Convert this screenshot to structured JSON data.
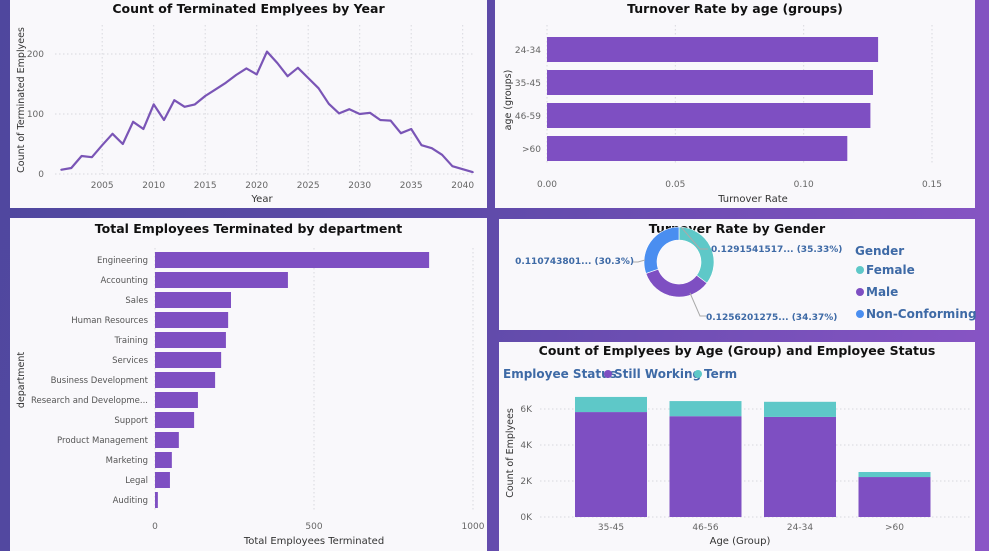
{
  "colors": {
    "purple": "#7e4fc2",
    "teal": "#5ec8c8",
    "blue": "#4a8ef0",
    "label_blue": "#3e6aa6",
    "line": "#7a55b6"
  },
  "chart_data": [
    {
      "type": "line",
      "title": "Count of Terminated Emplyees by Year",
      "xlabel": "Year",
      "ylabel": "Count of Terminated Emplyees",
      "x": [
        2001,
        2002,
        2003,
        2004,
        2005,
        2006,
        2007,
        2008,
        2009,
        2010,
        2011,
        2012,
        2013,
        2014,
        2015,
        2016,
        2017,
        2018,
        2019,
        2020,
        2021,
        2022,
        2023,
        2024,
        2025,
        2026,
        2027,
        2028,
        2029,
        2030,
        2031,
        2032,
        2033,
        2034,
        2035,
        2036,
        2037,
        2038,
        2039,
        2040,
        2041
      ],
      "values": [
        7,
        10,
        30,
        28,
        48,
        67,
        50,
        87,
        75,
        116,
        90,
        123,
        112,
        116,
        130,
        141,
        152,
        165,
        176,
        166,
        204,
        185,
        163,
        177,
        160,
        143,
        117,
        101,
        108,
        100,
        102,
        90,
        89,
        68,
        75,
        48,
        43,
        32,
        13,
        8,
        3
      ],
      "xticks": [
        "2005",
        "2010",
        "2015",
        "2020",
        "2025",
        "2030",
        "2035",
        "2040"
      ],
      "yticks": [
        "0",
        "100",
        "200"
      ],
      "ylim": [
        0,
        250
      ],
      "grid": true
    },
    {
      "type": "bar",
      "orientation": "horizontal",
      "title": "Turnover Rate by age (groups)",
      "xlabel": "Turnover Rate",
      "ylabel": "age (groups)",
      "categories": [
        "24-34",
        "35-45",
        "46-59",
        ">60"
      ],
      "values": [
        0.129,
        0.127,
        0.126,
        0.117
      ],
      "xticks": [
        "0.00",
        "0.05",
        "0.10",
        "0.15"
      ],
      "xlim": [
        0,
        0.15
      ],
      "grid": true
    },
    {
      "type": "bar",
      "orientation": "horizontal",
      "title": "Total Employees Terminated by department",
      "xlabel": "Total Employees Terminated",
      "ylabel": "department",
      "categories": [
        "Engineering",
        "Accounting",
        "Sales",
        "Human Resources",
        "Training",
        "Services",
        "Business Development",
        "Research and Developme...",
        "Support",
        "Product Management",
        "Marketing",
        "Legal",
        "Auditing"
      ],
      "values": [
        862,
        418,
        239,
        230,
        223,
        208,
        189,
        135,
        123,
        75,
        53,
        47,
        9
      ],
      "xticks": [
        "0",
        "500",
        "1000"
      ],
      "xlim": [
        0,
        1000
      ],
      "grid": true
    },
    {
      "type": "pie",
      "donut": true,
      "title": "Turnover Rate by Gender",
      "legend_title": "Gender",
      "legend_position": "right",
      "categories": [
        "Female",
        "Male",
        "Non-Conforming"
      ],
      "percents": [
        35.33,
        34.37,
        30.3
      ],
      "labels": [
        "0.1291541517... (35.33%)",
        "0.1256201275... (34.37%)",
        "0.110743801... (30.3%)"
      ]
    },
    {
      "type": "bar",
      "stacked": true,
      "title": "Count of Emplyees by Age (Group) and Employee Status",
      "legend_title": "Employee Status",
      "legend_position": "top-left",
      "xlabel": "Age (Group)",
      "ylabel": "Count of Emplyees",
      "categories": [
        "35-45",
        "46-56",
        "24-34",
        ">60"
      ],
      "series": [
        {
          "name": "Still Working",
          "values": [
            5830,
            5600,
            5560,
            2220
          ]
        },
        {
          "name": "Term",
          "values": [
            840,
            840,
            840,
            280
          ]
        }
      ],
      "yticks": [
        "0K",
        "2K",
        "4K",
        "6K"
      ],
      "ylim": [
        0,
        7000
      ],
      "grid": true
    }
  ]
}
